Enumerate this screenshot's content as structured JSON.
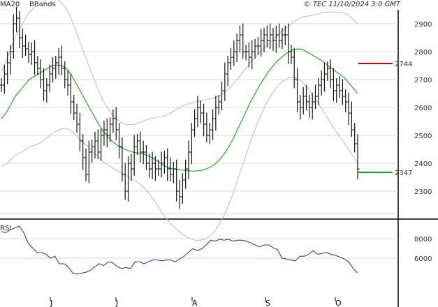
{
  "header": {
    "ma_label": "MA20",
    "bb_label": "BBands",
    "copyright": "© TEC 11/10/2024 3:0 GMT"
  },
  "rsi_label": "RSI",
  "price_axis": {
    "ticks": [
      "2900",
      "2800",
      "2700",
      "2600",
      "2500",
      "2400",
      "2300"
    ]
  },
  "rsi_axis": {
    "ticks": [
      "8000",
      "6000"
    ]
  },
  "months": [
    "J",
    "J",
    "A",
    "S",
    "O"
  ],
  "levels": {
    "resistance": "2744",
    "support": "2347",
    "resistance_color": "#cc0000",
    "support_color": "#1a9a1a"
  },
  "colors": {
    "ma": "#22aa22",
    "bbands": "#bbbbbb",
    "rsi": "#1b2fa6",
    "bars": "#111111",
    "grid": "#d8d8d8"
  },
  "chart_data": {
    "type": "ohlc",
    "ylim": [
      2250,
      2950
    ],
    "close": [
      2680,
      2720,
      2760,
      2800,
      2900,
      2920,
      2850,
      2820,
      2810,
      2790,
      2800,
      2760,
      2740,
      2700,
      2660,
      2680,
      2720,
      2740,
      2760,
      2780,
      2740,
      2700,
      2680,
      2620,
      2580,
      2540,
      2480,
      2420,
      2360,
      2440,
      2460,
      2480,
      2440,
      2500,
      2520,
      2500,
      2540,
      2560,
      2520,
      2460,
      2360,
      2300,
      2400,
      2380,
      2460,
      2480,
      2440,
      2440,
      2400,
      2380,
      2400,
      2380,
      2380,
      2400,
      2420,
      2380,
      2360,
      2380,
      2300,
      2280,
      2340,
      2380,
      2440,
      2520,
      2560,
      2600,
      2580,
      2540,
      2500,
      2520,
      2560,
      2600,
      2620,
      2660,
      2720,
      2760,
      2780,
      2800,
      2840,
      2860,
      2800,
      2800,
      2780,
      2800,
      2820,
      2820,
      2840,
      2860,
      2840,
      2860,
      2840,
      2860,
      2840,
      2860,
      2860,
      2800,
      2780,
      2700,
      2620,
      2600,
      2640,
      2620,
      2600,
      2620,
      2640,
      2680,
      2700,
      2720,
      2740,
      2700,
      2660,
      2680,
      2660,
      2640,
      2620,
      2580,
      2520,
      2470,
      2380
    ],
    "ma20": [
      2560,
      2580,
      2610,
      2640,
      2660,
      2680,
      2700,
      2710,
      2720,
      2730,
      2740,
      2750,
      2752,
      2750,
      2740,
      2720,
      2690,
      2660,
      2630,
      2600,
      2570,
      2540,
      2515,
      2495,
      2478,
      2465,
      2455,
      2448,
      2442,
      2438,
      2436,
      2432,
      2425,
      2415,
      2405,
      2392,
      2385,
      2380,
      2378,
      2376,
      2374,
      2372,
      2372,
      2374,
      2378,
      2385,
      2395,
      2410,
      2430,
      2455,
      2485,
      2520,
      2555,
      2590,
      2625,
      2655,
      2685,
      2710,
      2735,
      2755,
      2772,
      2786,
      2798,
      2806,
      2810,
      2808,
      2800,
      2790,
      2780,
      2770,
      2758,
      2745,
      2732,
      2720,
      2708,
      2690,
      2670,
      2650
    ],
    "rsi": [
      74,
      73,
      76,
      78,
      80,
      73,
      62,
      57,
      52,
      52,
      50,
      46,
      48,
      40,
      40,
      37,
      30,
      29,
      30,
      31,
      33,
      37,
      40,
      38,
      42,
      41,
      37,
      35,
      36,
      35,
      42,
      42,
      40,
      42,
      44,
      44,
      43,
      44,
      44,
      42,
      45,
      48,
      52,
      56,
      54,
      56,
      60,
      65,
      64,
      66,
      65,
      66,
      64,
      65,
      65,
      64,
      62,
      60,
      58,
      60,
      60,
      57,
      55,
      46,
      45,
      44,
      43,
      48,
      48,
      50,
      54,
      50,
      51,
      52,
      50,
      49,
      47,
      45,
      42,
      35,
      30
    ],
    "ma_label": "MA20",
    "bb_label": "BBands",
    "rsi_label": "RSI"
  }
}
